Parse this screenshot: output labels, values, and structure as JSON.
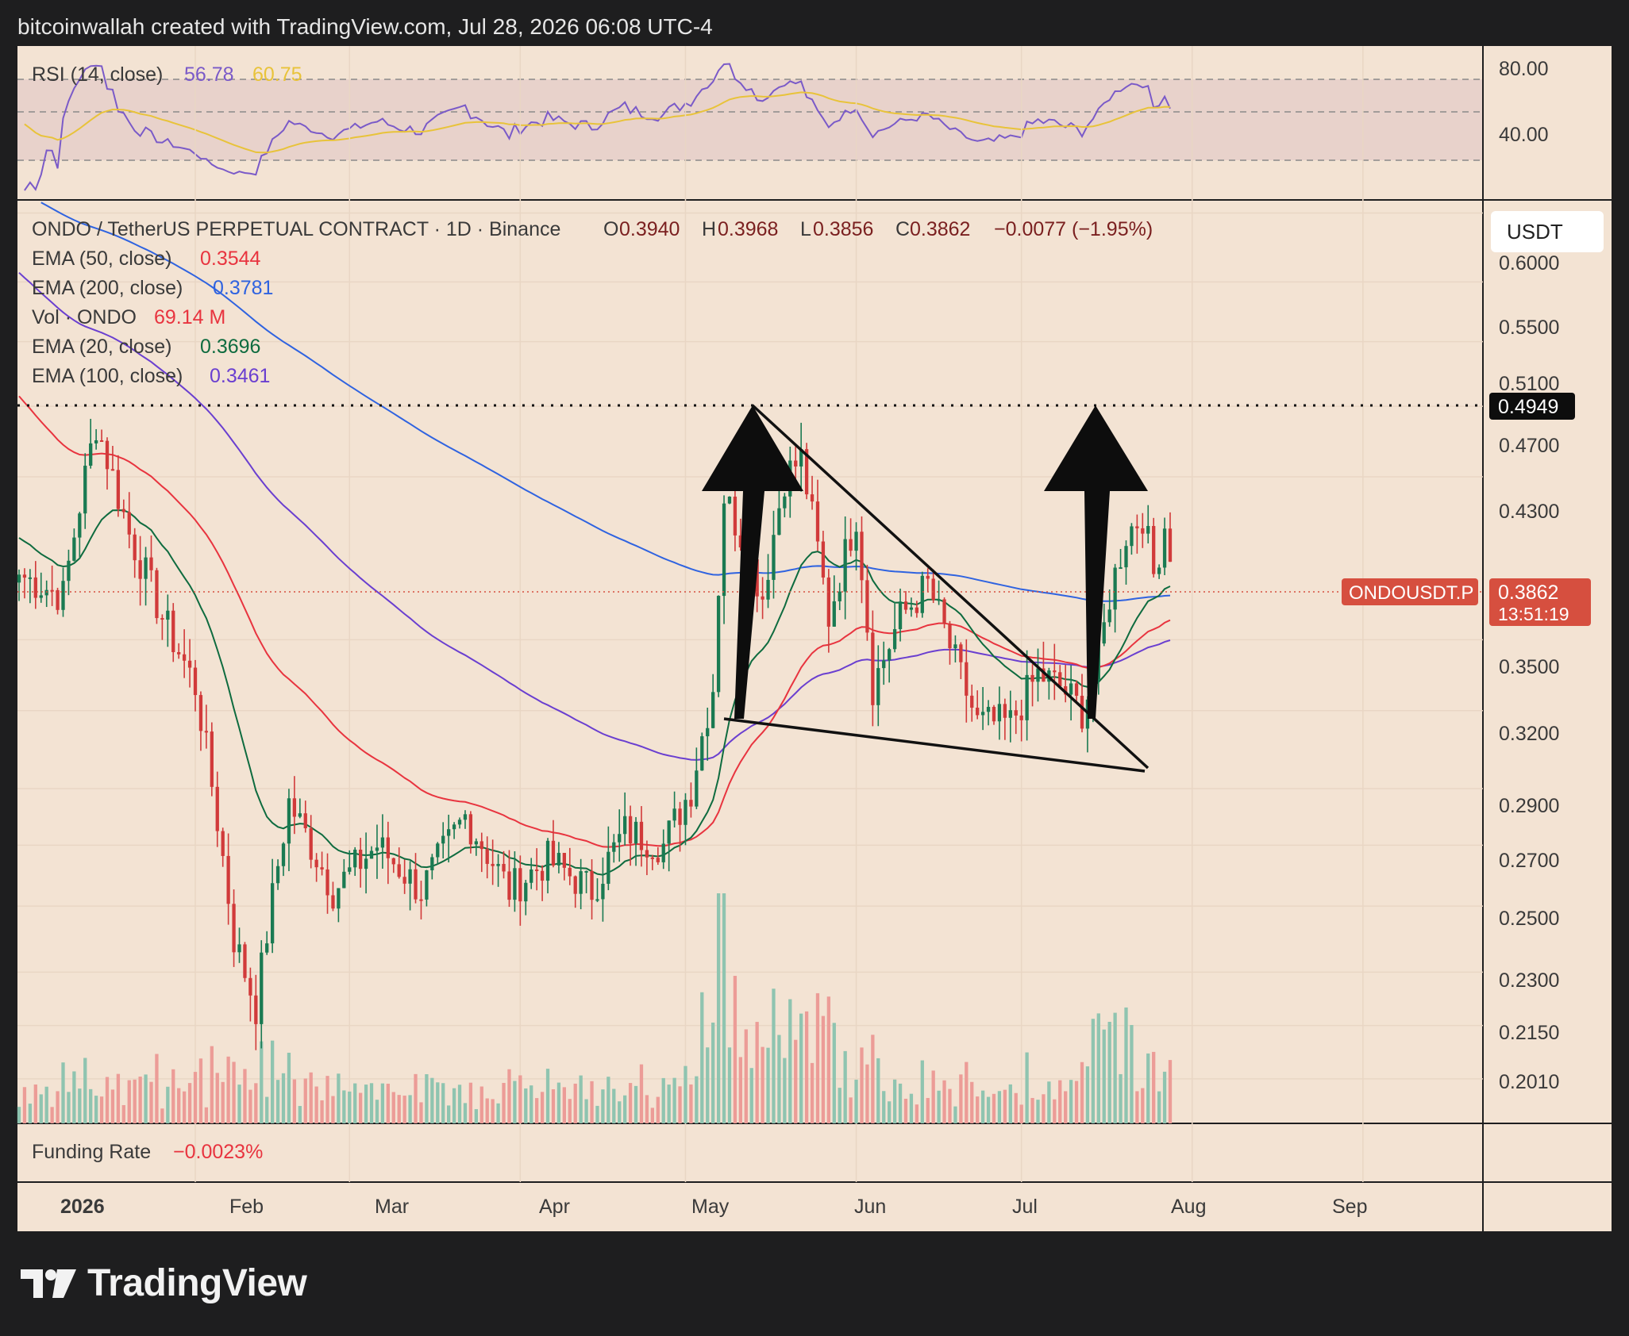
{
  "header": {
    "caption": "bitcoinwallah created with TradingView.com, Jul 28, 2026 06:08 UTC-4"
  },
  "brand": {
    "name": "TradingView",
    "logo_icon": "tradingview-logo-icon"
  },
  "colors": {
    "background": "#f3e3d3",
    "frame": "#1e1e1f",
    "up_candle": "#1a7a52",
    "down_candle": "#d13a3a",
    "vol_up": "#8fc4b0",
    "vol_down": "#ec9c97",
    "ema20": "#0e6b3f",
    "ema50": "#e8343f",
    "ema100": "#6a3fd0",
    "ema200": "#2f63e0",
    "rsi": "#7a5ac8",
    "rsi_ma": "#e8c33a",
    "price_tag": "#d64f3f"
  },
  "rsi_panel": {
    "label": "RSI (14, close)",
    "value": "56.78",
    "ma_value": "60.75",
    "ticks": [
      "80.00",
      "40.00"
    ]
  },
  "legend": {
    "symbol_line": "ONDO / TetherUS PERPETUAL CONTRACT · 1D · Binance",
    "ohlc": {
      "o_label": "O",
      "o_value": "0.3940",
      "h_label": "H",
      "h_value": "0.3968",
      "l_label": "L",
      "l_value": "0.3856",
      "c_label": "C",
      "c_value": "0.3862",
      "change": "−0.0077 (−1.95%)"
    },
    "indicators": [
      {
        "label": "EMA (50, close)",
        "value": "0.3544",
        "color": "#e8343f"
      },
      {
        "label": "EMA (200, close)",
        "value": "0.3781",
        "color": "#2f63e0"
      },
      {
        "label": "Vol · ONDO",
        "value": "69.14 M",
        "color": "#e8343f"
      },
      {
        "label": "EMA (20, close)",
        "value": "0.3696",
        "color": "#0e6b3f"
      },
      {
        "label": "EMA (100, close)",
        "value": "0.3461",
        "color": "#6a3fd0"
      }
    ]
  },
  "funding": {
    "label": "Funding Rate",
    "value": "−0.0023%"
  },
  "price_axis": {
    "currency": "USDT",
    "ticks": [
      "0.6000",
      "0.5500",
      "0.5100",
      "0.4700",
      "0.4300",
      "0.3500",
      "0.3200",
      "0.2900",
      "0.2700",
      "0.2500",
      "0.2300",
      "0.2150",
      "0.2010"
    ],
    "level_tag": "0.4949",
    "symbol_tag": "ONDOUSDT.P",
    "price_tag": "0.3862",
    "countdown": "13:51:19"
  },
  "time_axis": {
    "labels": [
      "2026",
      "Feb",
      "Mar",
      "Apr",
      "May",
      "Jun",
      "Jul",
      "Aug",
      "Sep"
    ]
  },
  "chart_data": {
    "type": "candlestick",
    "symbol": "ONDOUSDT.P",
    "interval": "1D",
    "scale": "log",
    "ylim": [
      0.19,
      0.61
    ],
    "date_range": [
      "2025-12-31",
      "2026-07-28"
    ],
    "horizontal_level": 0.4949,
    "last_close": 0.3862,
    "key_points": [
      {
        "date": "2025-12-31",
        "close": 0.38
      },
      {
        "date": "2026-01-08",
        "close": 0.37
      },
      {
        "date": "2026-01-14",
        "close": 0.46
      },
      {
        "date": "2026-01-20",
        "close": 0.4
      },
      {
        "date": "2026-01-26",
        "close": 0.36
      },
      {
        "date": "2026-02-01",
        "close": 0.33
      },
      {
        "date": "2026-02-08",
        "close": 0.24
      },
      {
        "date": "2026-02-12",
        "close": 0.22
      },
      {
        "date": "2026-02-18",
        "close": 0.285
      },
      {
        "date": "2026-02-26",
        "close": 0.255
      },
      {
        "date": "2026-03-06",
        "close": 0.27
      },
      {
        "date": "2026-03-14",
        "close": 0.255
      },
      {
        "date": "2026-03-22",
        "close": 0.28
      },
      {
        "date": "2026-03-30",
        "close": 0.255
      },
      {
        "date": "2026-04-06",
        "close": 0.265
      },
      {
        "date": "2026-04-14",
        "close": 0.255
      },
      {
        "date": "2026-04-20",
        "close": 0.275
      },
      {
        "date": "2026-04-27",
        "close": 0.27
      },
      {
        "date": "2026-05-02",
        "close": 0.29
      },
      {
        "date": "2026-05-06",
        "close": 0.33
      },
      {
        "date": "2026-05-08",
        "close": 0.42
      },
      {
        "date": "2026-05-11",
        "close": 0.4
      },
      {
        "date": "2026-05-15",
        "close": 0.37
      },
      {
        "date": "2026-05-19",
        "close": 0.43
      },
      {
        "date": "2026-05-22",
        "close": 0.44
      },
      {
        "date": "2026-05-27",
        "close": 0.36
      },
      {
        "date": "2026-06-01",
        "close": 0.41
      },
      {
        "date": "2026-06-04",
        "close": 0.33
      },
      {
        "date": "2026-06-09",
        "close": 0.36
      },
      {
        "date": "2026-06-14",
        "close": 0.375
      },
      {
        "date": "2026-06-19",
        "close": 0.34
      },
      {
        "date": "2026-06-23",
        "close": 0.315
      },
      {
        "date": "2026-06-29",
        "close": 0.315
      },
      {
        "date": "2026-07-04",
        "close": 0.335
      },
      {
        "date": "2026-07-08",
        "close": 0.33
      },
      {
        "date": "2026-07-12",
        "close": 0.32
      },
      {
        "date": "2026-07-15",
        "close": 0.34
      },
      {
        "date": "2026-07-17",
        "close": 0.37
      },
      {
        "date": "2026-07-20",
        "close": 0.4
      },
      {
        "date": "2026-07-23",
        "close": 0.41
      },
      {
        "date": "2026-07-25",
        "close": 0.38
      },
      {
        "date": "2026-07-27",
        "close": 0.405
      },
      {
        "date": "2026-07-28",
        "close": 0.3862
      }
    ],
    "series": [
      {
        "name": "EMA (20, close)",
        "last": 0.3696
      },
      {
        "name": "EMA (50, close)",
        "last": 0.3544
      },
      {
        "name": "EMA (100, close)",
        "last": 0.3461
      },
      {
        "name": "EMA (200, close)",
        "last": 0.3781
      }
    ],
    "annotations": [
      {
        "type": "trendline",
        "from": {
          "date": "2026-05-10",
          "price": 0.4949
        },
        "to": {
          "date": "2026-07-22",
          "price": 0.31
        }
      },
      {
        "type": "trendline",
        "from": {
          "date": "2026-05-07",
          "price": 0.325
        },
        "to": {
          "date": "2026-07-22",
          "price": 0.305
        }
      },
      {
        "type": "arrow-up",
        "date": "2026-05-08"
      },
      {
        "type": "arrow-up",
        "date": "2026-07-16"
      }
    ]
  }
}
